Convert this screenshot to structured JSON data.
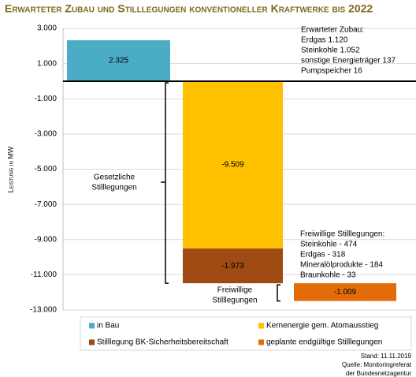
{
  "chart_data": {
    "type": "waterfall",
    "title": "Erwarteter Zubau und Stilllegungen konventioneller Kraftwerke bis 2022",
    "y_label": "Leistung in MW",
    "ylim": [
      -13000,
      3000
    ],
    "yticks": [
      {
        "value": 3000,
        "label": "3.000"
      },
      {
        "value": 1000,
        "label": "1.000"
      },
      {
        "value": -1000,
        "label": "-1.000"
      },
      {
        "value": -3000,
        "label": "-3.000"
      },
      {
        "value": -5000,
        "label": "-5.000"
      },
      {
        "value": -7000,
        "label": "-7.000"
      },
      {
        "value": -9000,
        "label": "-9.000"
      },
      {
        "value": -11000,
        "label": "-11.000"
      },
      {
        "value": -13000,
        "label": "-13.000"
      }
    ],
    "grid": true,
    "legend": "bottom",
    "series": [
      {
        "name": "in Bau",
        "color": "#4bacc6",
        "values": [
          2325
        ],
        "value_labels": [
          "2.325"
        ]
      },
      {
        "name": "Kernenergie gem. Atomausstieg",
        "color": "#ffc000",
        "values": [
          -9509
        ],
        "value_labels": [
          "-9.509"
        ]
      },
      {
        "name": "Stilllegung BK-Sicherheitsbereitschaft",
        "color": "#9e4a12",
        "values": [
          -1973
        ],
        "value_labels": [
          "-1.973"
        ]
      },
      {
        "name": "geplante endgültige Stilllegungen",
        "color": "#e36c09",
        "values": [
          -1009
        ],
        "value_labels": [
          "-1.009"
        ]
      }
    ],
    "annotations": {
      "zubau": [
        "Erwarteter Zubau:",
        "Erdgas 1.120",
        "Steinkohle 1.052",
        "sonstige Energieträger 137",
        "Pumpspeicher 16"
      ],
      "freiwillig": [
        "Freiwillige Stilllegungen:",
        "Steinkohle - 474",
        "Erdgas - 318",
        "Mineralölprodukte - 184",
        "Braunkohle - 33"
      ],
      "gesetzlich_bracket": [
        "Gesetzliche",
        "Stilllegungen"
      ],
      "freiwillig_bracket": [
        "Freiwillige",
        "Stilllegungen"
      ]
    },
    "source": [
      "Stand: 11.11.2019",
      "Quelle: Monitoringreferat",
      "der Bundesnetzagentur"
    ]
  }
}
